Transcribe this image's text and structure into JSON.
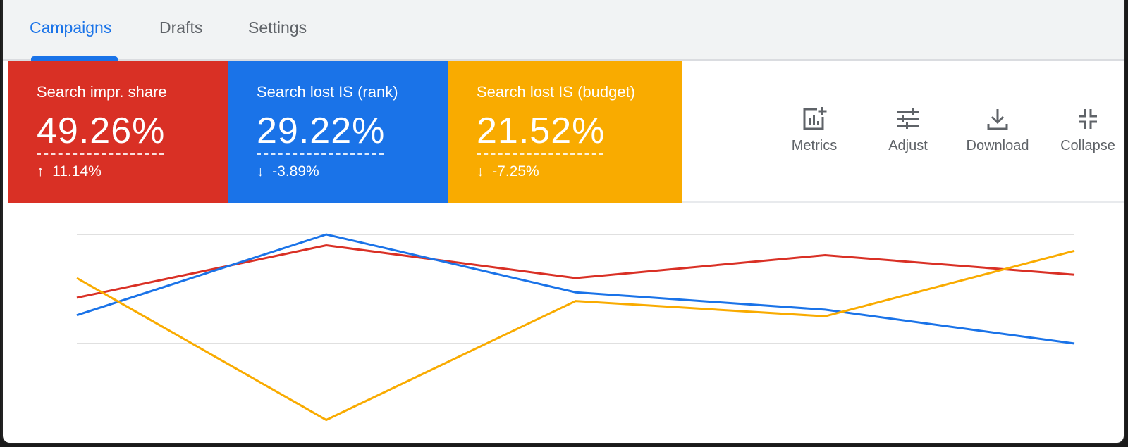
{
  "tabs": [
    {
      "label": "Campaigns",
      "active": true
    },
    {
      "label": "Drafts",
      "active": false
    },
    {
      "label": "Settings",
      "active": false
    }
  ],
  "scorecards": [
    {
      "label": "Search impr. share",
      "value": "49.26%",
      "delta_icon": "↑",
      "delta": "11.14%",
      "color": "#d93025"
    },
    {
      "label": "Search lost IS (rank)",
      "value": "29.22%",
      "delta_icon": "↓",
      "delta": "-3.89%",
      "color": "#1a73e8"
    },
    {
      "label": "Search lost IS (budget)",
      "value": "21.52%",
      "delta_icon": "↓",
      "delta": "-7.25%",
      "color": "#f9ab00"
    }
  ],
  "toolbar": {
    "metrics": {
      "label": "Metrics",
      "icon": "metrics-add-icon"
    },
    "adjust": {
      "label": "Adjust",
      "icon": "tune-icon"
    },
    "download": {
      "label": "Download",
      "icon": "download-icon"
    },
    "collapse": {
      "label": "Collapse",
      "icon": "collapse-icon"
    }
  },
  "chart_data": {
    "type": "line",
    "x": [
      0,
      1,
      2,
      3,
      4
    ],
    "title": "",
    "xlabel": "",
    "ylabel": "",
    "grid": true,
    "gridlines": 2,
    "legend": "none (series identified by scorecard colors)",
    "value_scale_note": "Placeholders only. The y-axis has no labels, so these numbers are plotted pixel positions inverted onto a 0-100 range, not the metric's actual values.",
    "series": [
      {
        "name": "Search impr. share",
        "color": "#d93025",
        "values": [
          42,
          90,
          60,
          81,
          63
        ]
      },
      {
        "name": "Search lost IS (rank)",
        "color": "#1a73e8",
        "values": [
          26,
          100,
          47,
          31,
          0
        ]
      },
      {
        "name": "Search lost IS (budget)",
        "color": "#f9ab00",
        "values": [
          60,
          -70,
          39,
          25,
          85
        ]
      }
    ]
  }
}
